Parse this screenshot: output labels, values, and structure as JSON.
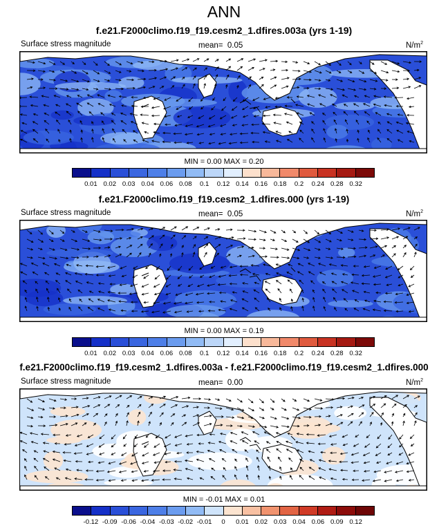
{
  "figure": {
    "season": "ANN"
  },
  "panels": [
    {
      "title": "f.e21.F2000climo.f19_f19.cesm2_1.dfires.003a (yrs 1-19)",
      "variable": "Surface stress magnitude",
      "mean_label": "mean=",
      "mean_value": "0.05",
      "units": "N/m",
      "units_exp": "2",
      "min_text": "MIN =   0.00 MAX =  0.20",
      "ticks": [
        "0.01",
        "0.02",
        "0.03",
        "0.04",
        "0.06",
        "0.08",
        "0.1",
        "0.12",
        "0.14",
        "0.16",
        "0.18",
        "0.2",
        "0.24",
        "0.28",
        "0.32"
      ]
    },
    {
      "title": "f.e21.F2000climo.f19_f19.cesm2_1.dfires.000 (yrs 1-19)",
      "variable": "Surface stress magnitude",
      "mean_label": "mean=",
      "mean_value": "0.05",
      "units": "N/m",
      "units_exp": "2",
      "min_text": "MIN =   0.00 MAX =  0.19",
      "ticks": [
        "0.01",
        "0.02",
        "0.03",
        "0.04",
        "0.06",
        "0.08",
        "0.1",
        "0.12",
        "0.14",
        "0.16",
        "0.18",
        "0.2",
        "0.24",
        "0.28",
        "0.32"
      ]
    },
    {
      "title": "f.e21.F2000climo.f19_f19.cesm2_1.dfires.003a - f.e21.F2000climo.f19_f19.cesm2_1.dfires.000",
      "variable": "Surface stress magnitude",
      "mean_label": "mean=",
      "mean_value": "0.00",
      "units": "N/m",
      "units_exp": "2",
      "min_text": "MIN =  -0.01 MAX =  0.01",
      "ticks": [
        "-0.12",
        "-0.09",
        "-0.06",
        "-0.04",
        "-0.03",
        "-0.02",
        "-0.01",
        "0",
        "0.01",
        "0.02",
        "0.03",
        "0.04",
        "0.06",
        "0.09",
        "0.12"
      ]
    }
  ],
  "colors": {
    "abs_scale": [
      "#0a0f8c",
      "#1530c8",
      "#2a4fd8",
      "#3a66e0",
      "#4e7fe8",
      "#6b9cef",
      "#91bbf5",
      "#bcd6f8",
      "#e2efff",
      "#fde0cc",
      "#f8b89a",
      "#f1896a",
      "#e05a3e",
      "#c83222",
      "#a51a12",
      "#7c0a08"
    ],
    "diff_scale": [
      "#0a0f8c",
      "#1530c8",
      "#2a4fd8",
      "#3a66e0",
      "#4e7fe8",
      "#6b9cef",
      "#91bbf5",
      "#cfe4fb",
      "#fce4d0",
      "#f8c0a2",
      "#f1936f",
      "#e26444",
      "#d03a26",
      "#b01c14",
      "#8c0c0a",
      "#6e0606"
    ]
  }
}
